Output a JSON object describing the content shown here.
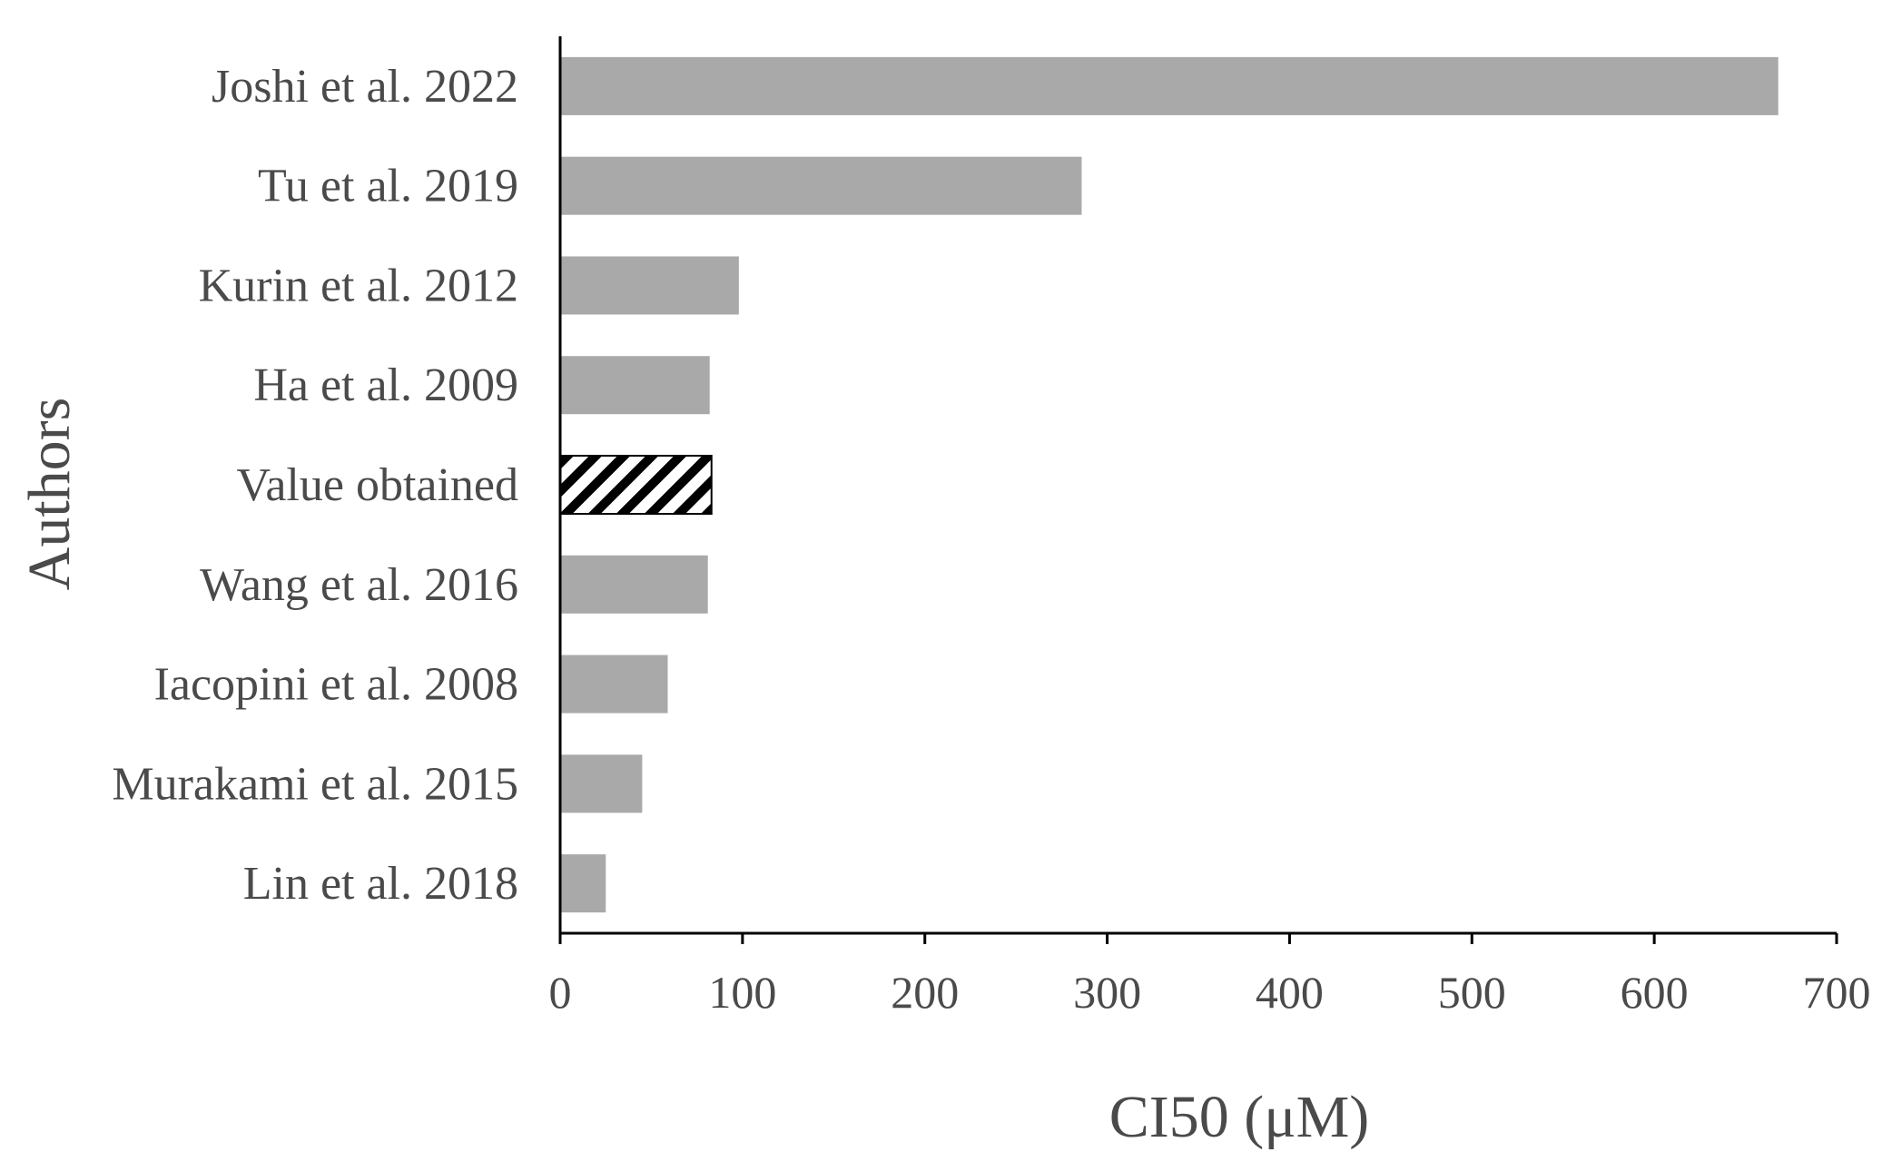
{
  "chart_data": {
    "type": "bar",
    "orientation": "horizontal",
    "categories": [
      "Joshi et al. 2022",
      "Tu et al. 2019",
      "Kurin et al. 2012",
      "Ha et al. 2009",
      "Value obtained",
      "Wang et al. 2016",
      "Iacopini et al. 2008",
      "Murakami et al. 2015",
      "Lin et al. 2018"
    ],
    "values": [
      668,
      286,
      98,
      82,
      83,
      81,
      59,
      45,
      25
    ],
    "highlight_category": "Value obtained",
    "xlabel": "CI50 (μM)",
    "ylabel": "Authors",
    "xlim": [
      0,
      700
    ],
    "xticks": [
      0,
      100,
      200,
      300,
      400,
      500,
      600,
      700
    ],
    "grid": false,
    "legend": "none",
    "colors": {
      "bar": "#a9a9a9",
      "highlight_stripe": "#000000",
      "highlight_background": "#ffffff"
    }
  }
}
